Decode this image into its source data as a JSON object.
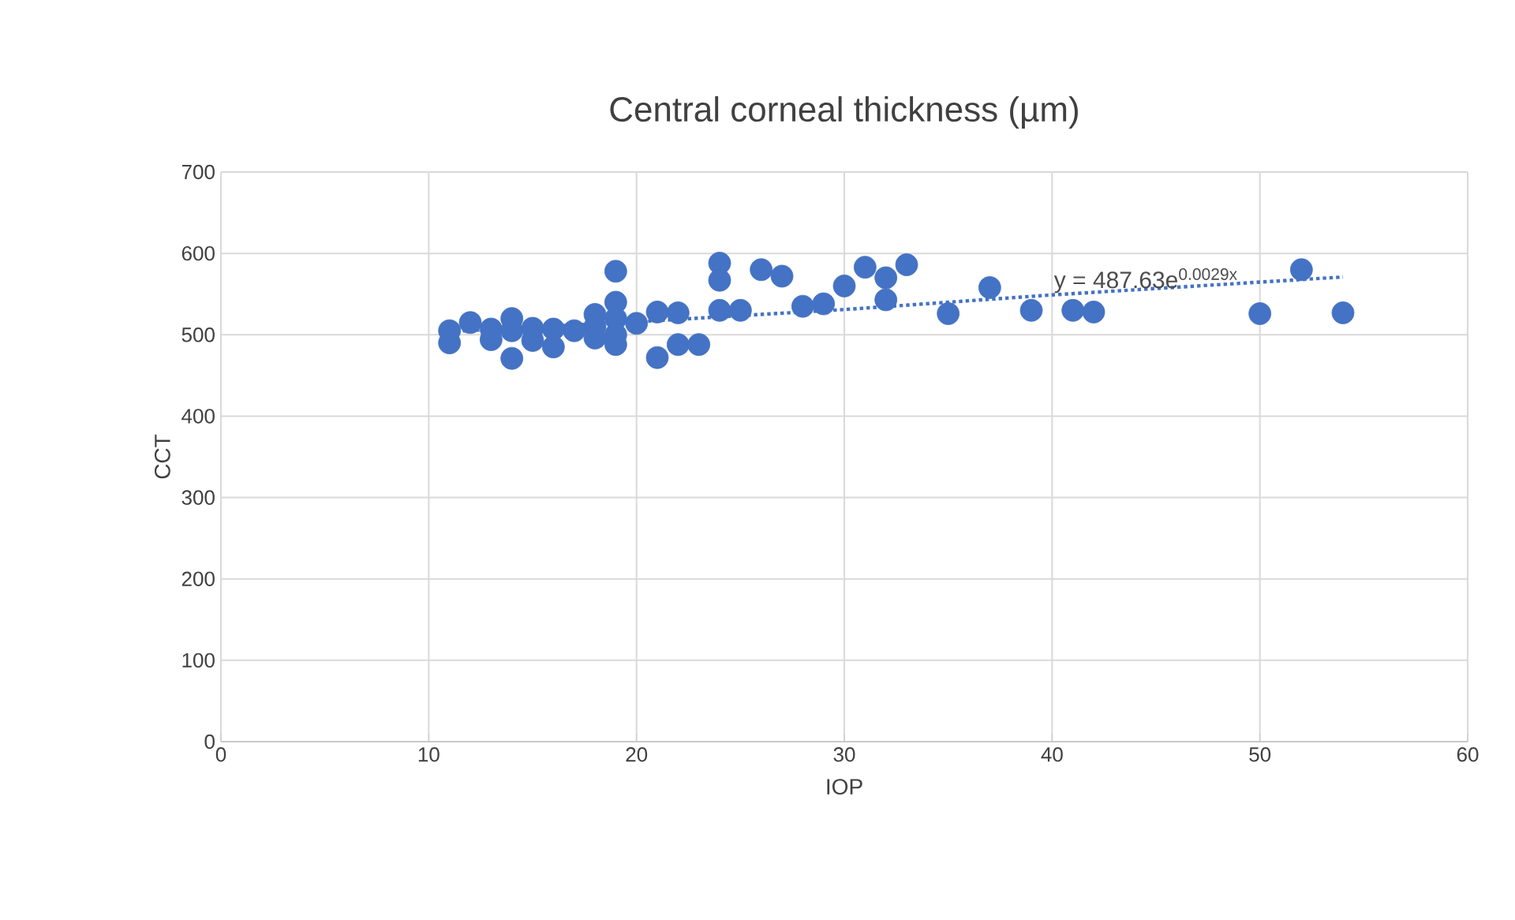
{
  "chart_data": {
    "type": "scatter",
    "title": "Central corneal thickness (µm)",
    "xlabel": "IOP",
    "ylabel": "CCT",
    "xlim": [
      0,
      60
    ],
    "ylim": [
      0,
      700
    ],
    "xticks": [
      0,
      10,
      20,
      30,
      40,
      50,
      60
    ],
    "yticks": [
      0,
      100,
      200,
      300,
      400,
      500,
      600,
      700
    ],
    "grid": true,
    "annotations": [
      {
        "text": "y = 487.63e$^{0.0029x}$",
        "x": 40,
        "y": 549
      }
    ],
    "series": [
      {
        "color": "#4472c4",
        "marker": "circle",
        "x": [
          11,
          11,
          12,
          13,
          13,
          14,
          14,
          14,
          15,
          15,
          16,
          16,
          17,
          18,
          18,
          18,
          19,
          19,
          19,
          19,
          19,
          20,
          21,
          21,
          22,
          22,
          23,
          24,
          24,
          24,
          25,
          26,
          27,
          28,
          29,
          30,
          31,
          32,
          32,
          33,
          35,
          37,
          39,
          41,
          42,
          50,
          52,
          54
        ],
        "values": [
          505,
          490,
          515,
          507,
          494,
          520,
          505,
          471,
          508,
          493,
          507,
          485,
          505,
          525,
          510,
          496,
          578,
          540,
          520,
          500,
          488,
          514,
          528,
          472,
          527,
          488,
          488,
          588,
          567,
          530,
          530,
          580,
          572,
          535,
          538,
          560,
          583,
          570,
          543,
          586,
          526,
          558,
          530,
          530,
          528,
          526,
          580,
          527
        ]
      },
      {
        "type": "line",
        "color": "#4472c4",
        "line_style": "dotted",
        "x": [
          11,
          20,
          30,
          40,
          54
        ],
        "values": [
          504,
          516,
          531,
          549,
          571
        ]
      }
    ]
  }
}
